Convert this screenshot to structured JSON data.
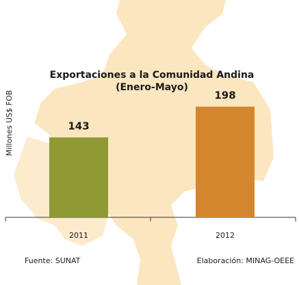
{
  "chart_data": {
    "type": "bar",
    "title": "Exportaciones a la Comunidad Andina",
    "subtitle": "(Enero-Mayo)",
    "y_label": "Millones US$ FOB",
    "categories": [
      "2011",
      "2012"
    ],
    "values": [
      143,
      198
    ],
    "colors": [
      "#8f9a35",
      "#d4862e"
    ],
    "ylim": [
      0,
      250
    ],
    "source": "Fuente: SUNAT",
    "credit": "Elaboración: MINAG-OEEE"
  }
}
